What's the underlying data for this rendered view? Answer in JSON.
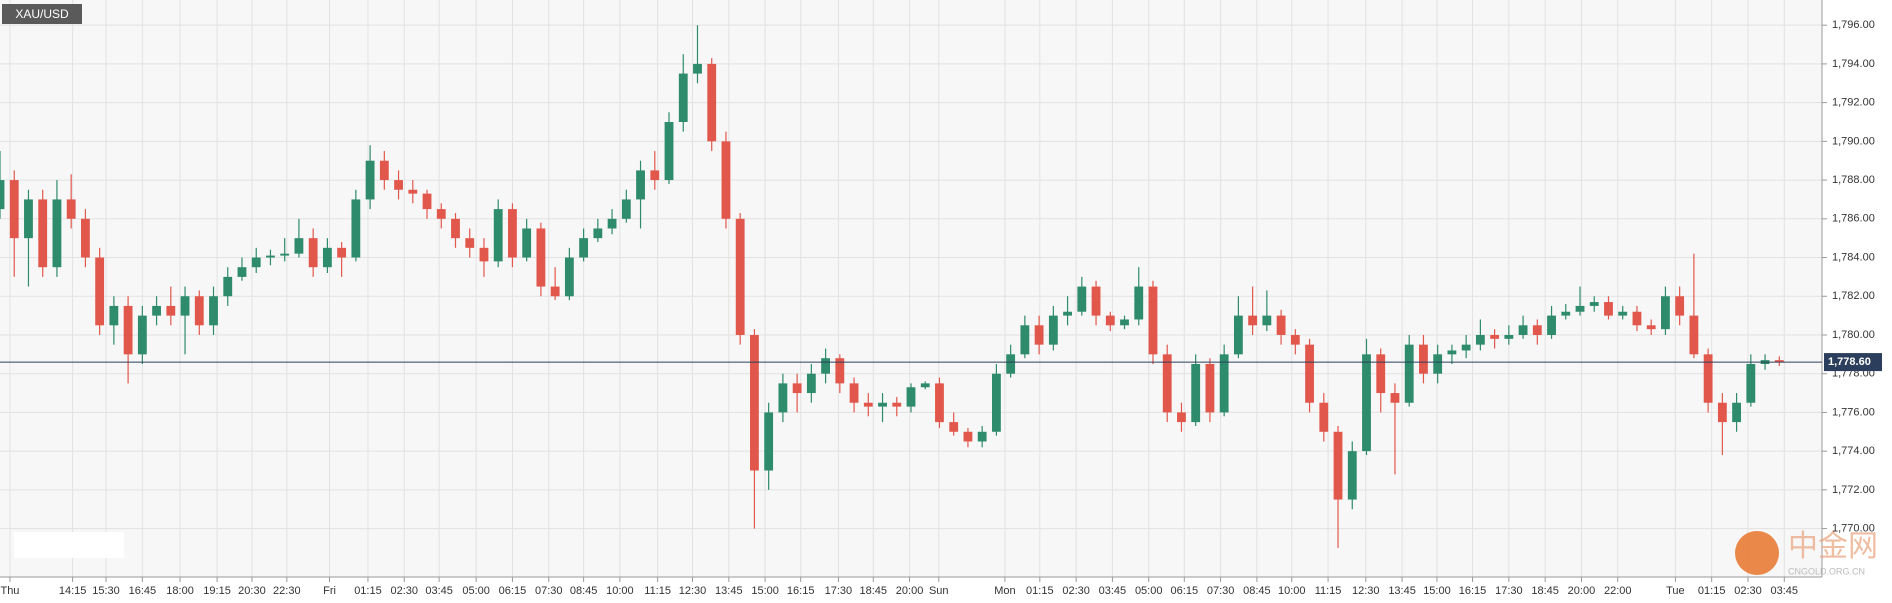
{
  "chart_data": {
    "type": "candlestick",
    "symbol": "XAU/USD",
    "up_color": "#2e8b6b",
    "down_color": "#e2574c",
    "grid": true,
    "last_price": {
      "value": 1778.6,
      "label": "1,778.60"
    },
    "xlim": [
      0,
      256
    ],
    "ylim": [
      1767.5,
      1797.3
    ],
    "yticks": [
      {
        "value": 1770,
        "label": "1,770.00"
      },
      {
        "value": 1772,
        "label": "1,772.00"
      },
      {
        "value": 1774,
        "label": "1,774.00"
      },
      {
        "value": 1776,
        "label": "1,776.00"
      },
      {
        "value": 1778,
        "label": "1,778.00"
      },
      {
        "value": 1780,
        "label": "1,780.00"
      },
      {
        "value": 1782,
        "label": "1,782.00"
      },
      {
        "value": 1784,
        "label": "1,784.00"
      },
      {
        "value": 1786,
        "label": "1,786.00"
      },
      {
        "value": 1788,
        "label": "1,788.00"
      },
      {
        "value": 1790,
        "label": "1,790.00"
      },
      {
        "value": 1792,
        "label": "1,792.00"
      },
      {
        "value": 1794,
        "label": "1,794.00"
      },
      {
        "value": 1796,
        "label": "1,796.00"
      }
    ],
    "xticks": [
      {
        "value": 1.4,
        "label": "Thu"
      },
      {
        "value": 10.2,
        "label": "14:15"
      },
      {
        "value": 14.9,
        "label": "15:30"
      },
      {
        "value": 20,
        "label": "16:45"
      },
      {
        "value": 25.3,
        "label": "18:00"
      },
      {
        "value": 30.5,
        "label": "19:15"
      },
      {
        "value": 35.4,
        "label": "20:30"
      },
      {
        "value": 40.3,
        "label": "22:30"
      },
      {
        "value": 46.3,
        "label": "Fri"
      },
      {
        "value": 51.7,
        "label": "01:15"
      },
      {
        "value": 56.8,
        "label": "02:30"
      },
      {
        "value": 61.7,
        "label": "03:45"
      },
      {
        "value": 66.9,
        "label": "05:00"
      },
      {
        "value": 72,
        "label": "06:15"
      },
      {
        "value": 77.1,
        "label": "07:30"
      },
      {
        "value": 82,
        "label": "08:45"
      },
      {
        "value": 87.1,
        "label": "10:00"
      },
      {
        "value": 92.4,
        "label": "11:15"
      },
      {
        "value": 97.3,
        "label": "12:30"
      },
      {
        "value": 102.4,
        "label": "13:45"
      },
      {
        "value": 107.5,
        "label": "15:00"
      },
      {
        "value": 112.5,
        "label": "16:15"
      },
      {
        "value": 117.8,
        "label": "17:30"
      },
      {
        "value": 122.7,
        "label": "18:45"
      },
      {
        "value": 127.8,
        "label": "20:00"
      },
      {
        "value": 131.9,
        "label": "Sun"
      },
      {
        "value": 141.2,
        "label": "Mon"
      },
      {
        "value": 146.1,
        "label": "01:15"
      },
      {
        "value": 151.2,
        "label": "02:30"
      },
      {
        "value": 156.3,
        "label": "03:45"
      },
      {
        "value": 161.4,
        "label": "05:00"
      },
      {
        "value": 166.4,
        "label": "06:15"
      },
      {
        "value": 171.5,
        "label": "07:30"
      },
      {
        "value": 176.6,
        "label": "08:45"
      },
      {
        "value": 181.5,
        "label": "10:00"
      },
      {
        "value": 186.6,
        "label": "11:15"
      },
      {
        "value": 191.9,
        "label": "12:30"
      },
      {
        "value": 197,
        "label": "13:45"
      },
      {
        "value": 201.9,
        "label": "15:00"
      },
      {
        "value": 206.9,
        "label": "16:15"
      },
      {
        "value": 212,
        "label": "17:30"
      },
      {
        "value": 217.1,
        "label": "18:45"
      },
      {
        "value": 222.2,
        "label": "20:00"
      },
      {
        "value": 227.3,
        "label": "22:00"
      },
      {
        "value": 235.4,
        "label": "Tue"
      },
      {
        "value": 240.5,
        "label": "01:15"
      },
      {
        "value": 245.6,
        "label": "02:30"
      },
      {
        "value": 250.7,
        "label": "03:45"
      }
    ],
    "x": [
      0,
      2,
      4,
      6,
      8,
      10,
      12,
      14,
      16,
      18,
      20,
      22,
      24,
      26,
      28,
      30,
      32,
      34,
      36,
      38,
      40,
      42,
      44,
      46,
      48,
      50,
      52,
      54,
      56,
      58,
      60,
      62,
      64,
      66,
      68,
      70,
      72,
      74,
      76,
      78,
      80,
      82,
      84,
      86,
      88,
      90,
      92,
      94,
      96,
      98,
      100,
      102,
      104,
      106,
      108,
      110,
      112,
      114,
      116,
      118,
      120,
      122,
      124,
      126,
      128,
      130,
      132,
      134,
      136,
      138,
      140,
      142,
      144,
      146,
      148,
      150,
      152,
      154,
      156,
      158,
      160,
      162,
      164,
      166,
      168,
      170,
      172,
      174,
      176,
      178,
      180,
      182,
      184,
      186,
      188,
      190,
      192,
      194,
      196,
      198,
      200,
      202,
      204,
      206,
      208,
      210,
      212,
      214,
      216,
      218,
      220,
      222,
      224,
      226,
      228,
      230,
      232,
      234,
      236,
      238,
      240,
      242,
      244,
      246,
      248,
      250
    ],
    "open": [
      1786.5,
      1788,
      1785,
      1787,
      1783.5,
      1787,
      1786,
      1784,
      1780.5,
      1781.5,
      1779,
      1781,
      1781.5,
      1781,
      1782,
      1780.5,
      1782,
      1783,
      1783.5,
      1784,
      1784.1,
      1784.2,
      1785,
      1783.5,
      1784.5,
      1784,
      1787,
      1789,
      1788,
      1787.5,
      1787.3,
      1786.5,
      1786,
      1785,
      1784.5,
      1783.8,
      1786.5,
      1784,
      1785.5,
      1782.5,
      1782,
      1784,
      1785,
      1785.5,
      1786,
      1787,
      1788.5,
      1788,
      1791,
      1793.5,
      1794,
      1790,
      1786,
      1780,
      1773,
      1776,
      1777.5,
      1777,
      1778,
      1778.8,
      1777.5,
      1776.5,
      1776.3,
      1776.5,
      1776.3,
      1777.3,
      1777.5,
      1775.5,
      1775,
      1774.5,
      1775,
      1778,
      1779,
      1780.5,
      1779.5,
      1781,
      1781.2,
      1782.5,
      1781,
      1780.5,
      1780.8,
      1782.5,
      1779,
      1776,
      1775.5,
      1778.5,
      1776,
      1779,
      1781,
      1780.5,
      1781,
      1780,
      1779.5,
      1776.5,
      1775,
      1771.5,
      1774,
      1779,
      1777,
      1776.5,
      1779.5,
      1778,
      1779,
      1779.2,
      1779.5,
      1780,
      1779.8,
      1780,
      1780.5,
      1780,
      1781,
      1781.2,
      1781.5,
      1781.7,
      1781,
      1781.2,
      1780.5,
      1780.3,
      1782,
      1781,
      1779,
      1776.5,
      1775.5,
      1776.5,
      1778.5,
      1778.7
    ],
    "high": [
      1789.5,
      1788.5,
      1787.5,
      1787.5,
      1788,
      1788.3,
      1786.5,
      1784.5,
      1782,
      1782,
      1781.5,
      1782,
      1782.5,
      1782.5,
      1782.3,
      1782.5,
      1783.5,
      1784,
      1784.5,
      1784.4,
      1785,
      1786,
      1785.5,
      1785,
      1784.8,
      1787.5,
      1789.8,
      1789.5,
      1788.5,
      1788,
      1787.5,
      1786.8,
      1786.3,
      1785.5,
      1785,
      1787,
      1786.8,
      1786,
      1785.8,
      1783.5,
      1784.5,
      1785.5,
      1786,
      1786.5,
      1787.5,
      1789,
      1789.5,
      1791.5,
      1794.5,
      1796,
      1794.3,
      1790.5,
      1786.3,
      1780.3,
      1776.5,
      1778,
      1778,
      1778.5,
      1779.3,
      1779,
      1777.8,
      1777,
      1777,
      1776.8,
      1777.5,
      1777.6,
      1777.8,
      1776,
      1775.2,
      1775.3,
      1778.5,
      1779.5,
      1781,
      1781,
      1781.5,
      1782,
      1783,
      1782.8,
      1781.2,
      1781,
      1783.5,
      1782.8,
      1779.5,
      1776.5,
      1779,
      1778.8,
      1779.5,
      1782,
      1782.5,
      1782.3,
      1781.3,
      1780.3,
      1779.8,
      1777,
      1775.3,
      1774.5,
      1779.8,
      1779.3,
      1777.5,
      1780,
      1780,
      1779.5,
      1779.5,
      1780,
      1780.8,
      1780.3,
      1780.5,
      1781,
      1780.8,
      1781.5,
      1781.6,
      1782.5,
      1782,
      1782,
      1781.5,
      1781.5,
      1780.8,
      1782.5,
      1782.5,
      1784.2,
      1779.3,
      1777,
      1777,
      1779,
      1779,
      1778.9
    ],
    "low": [
      1786,
      1783,
      1782.5,
      1783,
      1783,
      1785.5,
      1783.5,
      1780,
      1779.5,
      1777.5,
      1778.5,
      1780.5,
      1780.5,
      1779,
      1780,
      1780,
      1781.5,
      1782.8,
      1783.2,
      1783.6,
      1783.8,
      1784,
      1783,
      1783.2,
      1783,
      1783.8,
      1786.5,
      1787.5,
      1787,
      1786.8,
      1786,
      1785.5,
      1784.5,
      1784,
      1783,
      1783.5,
      1783.5,
      1783.8,
      1782,
      1781.8,
      1781.8,
      1783.8,
      1784.8,
      1785.2,
      1785.8,
      1785.5,
      1787.5,
      1787.8,
      1790.5,
      1793,
      1789.5,
      1785.5,
      1779.5,
      1770,
      1772,
      1775.5,
      1776,
      1776.5,
      1777.5,
      1777,
      1776,
      1775.8,
      1775.5,
      1775.8,
      1776,
      1777.2,
      1775.2,
      1774.8,
      1774.2,
      1774.2,
      1774.8,
      1777.8,
      1778.8,
      1779,
      1779.2,
      1780.5,
      1781,
      1780.5,
      1780.2,
      1780.3,
      1780.5,
      1778.5,
      1775.5,
      1775,
      1775.3,
      1775.5,
      1775.8,
      1778.8,
      1780,
      1780.2,
      1779.5,
      1779,
      1776,
      1774.5,
      1769,
      1771,
      1773.8,
      1776,
      1772.8,
      1776.3,
      1777.5,
      1777.5,
      1778.5,
      1778.8,
      1779.2,
      1779.3,
      1779.5,
      1779.8,
      1779.5,
      1779.8,
      1780.8,
      1781,
      1781.2,
      1780.8,
      1780.8,
      1780.2,
      1780,
      1780,
      1780.5,
      1778.8,
      1776,
      1773.8,
      1775,
      1776.3,
      1778.2,
      1778.4
    ],
    "close": [
      1788,
      1785,
      1787,
      1783.5,
      1787,
      1786,
      1784,
      1780.5,
      1781.5,
      1779,
      1781,
      1781.5,
      1781,
      1782,
      1780.5,
      1782,
      1783,
      1783.5,
      1784,
      1784.1,
      1784.2,
      1785,
      1783.5,
      1784.5,
      1784,
      1787,
      1789,
      1788,
      1787.5,
      1787.3,
      1786.5,
      1786,
      1785,
      1784.5,
      1783.8,
      1786.5,
      1784,
      1785.5,
      1782.5,
      1782,
      1784,
      1785,
      1785.5,
      1786,
      1787,
      1788.5,
      1788,
      1791,
      1793.5,
      1794,
      1790,
      1786,
      1780,
      1773,
      1776,
      1777.5,
      1777,
      1778,
      1778.8,
      1777.5,
      1776.5,
      1776.3,
      1776.5,
      1776.3,
      1777.3,
      1777.5,
      1775.5,
      1775,
      1774.5,
      1775,
      1778,
      1779,
      1780.5,
      1779.5,
      1781,
      1781.2,
      1782.5,
      1781,
      1780.5,
      1780.8,
      1782.5,
      1779,
      1776,
      1775.5,
      1778.5,
      1776,
      1779,
      1781,
      1780.5,
      1781,
      1780,
      1779.5,
      1776.5,
      1775,
      1771.5,
      1774,
      1779,
      1777,
      1776.5,
      1779.5,
      1778,
      1779,
      1779.2,
      1779.5,
      1780,
      1779.8,
      1780,
      1780.5,
      1780,
      1781,
      1781.2,
      1781.5,
      1781.7,
      1781,
      1781.2,
      1780.5,
      1780.3,
      1782,
      1781,
      1779,
      1776.5,
      1775.5,
      1776.5,
      1778.5,
      1778.7,
      1778.6
    ]
  },
  "watermark": {
    "text": "中金网",
    "subtext": "CNGOLD.ORG.CN"
  }
}
